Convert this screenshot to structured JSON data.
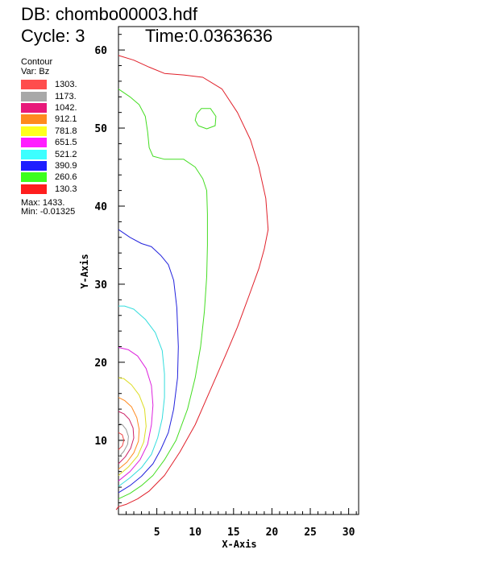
{
  "header": {
    "db_label": "DB: chombo00003.hdf",
    "cycle_label": "Cycle: 3",
    "time_label": "Time:0.0363636"
  },
  "legend": {
    "title": "Contour",
    "var_label": "Var: Bz",
    "levels": [
      {
        "label": "1303.",
        "color": "#ff4d4d"
      },
      {
        "label": "1173.",
        "color": "#a8a8a8"
      },
      {
        "label": "1042.",
        "color": "#e8197a"
      },
      {
        "label": "912.1",
        "color": "#ff8a1e"
      },
      {
        "label": "781.8",
        "color": "#ffff1e"
      },
      {
        "label": "651.5",
        "color": "#ff1eff"
      },
      {
        "label": "521.2",
        "color": "#3cffff"
      },
      {
        "label": "390.9",
        "color": "#1e1eff"
      },
      {
        "label": "260.6",
        "color": "#3cff1e"
      },
      {
        "label": "130.3",
        "color": "#ff1e1e"
      }
    ],
    "max_label": "Max:  1433.",
    "min_label": "Min:  -0.01325"
  },
  "chart_data": {
    "type": "contour",
    "xlabel": "X-Axis",
    "ylabel": "Y-Axis",
    "xlim": [
      0,
      31.3
    ],
    "ylim": [
      0.5,
      63
    ],
    "xticks": [
      5,
      10,
      15,
      20,
      25,
      30
    ],
    "yticks": [
      10,
      20,
      30,
      40,
      50,
      60
    ],
    "series": [
      {
        "level": "130.3",
        "color": "#e0202a",
        "points": [
          [
            0,
            1.5
          ],
          [
            1,
            1.8
          ],
          [
            2.5,
            2.5
          ],
          [
            4,
            3.5
          ],
          [
            6,
            5.5
          ],
          [
            8,
            8.5
          ],
          [
            10,
            12
          ],
          [
            12,
            16.5
          ],
          [
            14,
            21
          ],
          [
            15.5,
            24.5
          ],
          [
            17,
            28.5
          ],
          [
            18.3,
            32
          ],
          [
            19,
            34.5
          ],
          [
            19.5,
            37
          ],
          [
            19.2,
            41
          ],
          [
            18.3,
            45
          ],
          [
            17.2,
            48.5
          ],
          [
            15.5,
            52
          ],
          [
            13.5,
            55
          ],
          [
            11,
            56.5
          ],
          [
            8.5,
            56.8
          ],
          [
            6,
            57
          ],
          [
            4,
            57.8
          ],
          [
            2,
            58.7
          ],
          [
            0,
            59.3
          ]
        ]
      },
      {
        "level": "130.3",
        "color": "#e0202a",
        "points": [
          [
            -0.3,
            1.1
          ],
          [
            0,
            1.5
          ]
        ]
      },
      {
        "level": "260.6",
        "color": "#44dd22",
        "points": [
          [
            0,
            2.5
          ],
          [
            1.5,
            3.2
          ],
          [
            3,
            4.2
          ],
          [
            4.5,
            5.5
          ],
          [
            6,
            7.5
          ],
          [
            7.5,
            10
          ],
          [
            9,
            14
          ],
          [
            10,
            18
          ],
          [
            10.7,
            22
          ],
          [
            11.2,
            26.5
          ],
          [
            11.5,
            31
          ],
          [
            11.6,
            35
          ],
          [
            11.6,
            39
          ],
          [
            11.5,
            42
          ],
          [
            11,
            43.5
          ],
          [
            10,
            45
          ],
          [
            8.5,
            46
          ],
          [
            6,
            46
          ],
          [
            4.5,
            46.4
          ],
          [
            4,
            47.5
          ],
          [
            3.8,
            49.5
          ],
          [
            3.5,
            51.5
          ],
          [
            2.7,
            53
          ],
          [
            1.5,
            54
          ],
          [
            0,
            55
          ]
        ]
      },
      {
        "level": "260.6",
        "color": "#44dd22",
        "points": [
          [
            10.4,
            50.3
          ],
          [
            11.5,
            49.9
          ],
          [
            12.6,
            50.3
          ],
          [
            12.7,
            51.5
          ],
          [
            12,
            52.5
          ],
          [
            10.8,
            52.5
          ],
          [
            10.2,
            51.8
          ],
          [
            10,
            51
          ],
          [
            10.4,
            50.3
          ]
        ]
      },
      {
        "level": "390.9",
        "color": "#2222dd",
        "points": [
          [
            0,
            3.3
          ],
          [
            1.5,
            4.2
          ],
          [
            3,
            5.4
          ],
          [
            4.5,
            7
          ],
          [
            5.5,
            8.8
          ],
          [
            6.5,
            11
          ],
          [
            7.2,
            14
          ],
          [
            7.7,
            18
          ],
          [
            7.8,
            22
          ],
          [
            7.6,
            27
          ],
          [
            7.2,
            30.5
          ],
          [
            6.5,
            32.5
          ],
          [
            5.5,
            33.7
          ],
          [
            4.3,
            34.8
          ],
          [
            3,
            35.2
          ],
          [
            1.5,
            36
          ],
          [
            0,
            37
          ]
        ]
      },
      {
        "level": "521.2",
        "color": "#33dddd",
        "points": [
          [
            0,
            4.1
          ],
          [
            1.5,
            5.2
          ],
          [
            3,
            6.5
          ],
          [
            4.3,
            8.2
          ],
          [
            5.1,
            10.3
          ],
          [
            5.7,
            12.8
          ],
          [
            6,
            15.5
          ],
          [
            6,
            18.5
          ],
          [
            5.7,
            21.5
          ],
          [
            4.8,
            23.8
          ],
          [
            3.5,
            25.5
          ],
          [
            2,
            26.8
          ],
          [
            0.8,
            27.2
          ],
          [
            0,
            27.2
          ]
        ]
      },
      {
        "level": "651.5",
        "color": "#dd22dd",
        "points": [
          [
            0,
            4.8
          ],
          [
            1.5,
            6
          ],
          [
            2.8,
            7.5
          ],
          [
            3.8,
            9.5
          ],
          [
            4.3,
            12
          ],
          [
            4.5,
            14.5
          ],
          [
            4.3,
            17
          ],
          [
            3.6,
            19.2
          ],
          [
            2.5,
            20.8
          ],
          [
            1.3,
            21.6
          ],
          [
            0,
            21.9
          ]
        ]
      },
      {
        "level": "781.8",
        "color": "#dddd22",
        "points": [
          [
            0,
            5.5
          ],
          [
            1.3,
            6.6
          ],
          [
            2.5,
            8
          ],
          [
            3.3,
            9.8
          ],
          [
            3.6,
            11.8
          ],
          [
            3.4,
            14
          ],
          [
            2.7,
            15.8
          ],
          [
            1.7,
            17.1
          ],
          [
            0.7,
            17.9
          ],
          [
            0,
            18
          ]
        ]
      },
      {
        "level": "912.1",
        "color": "#ff8a1e",
        "points": [
          [
            0,
            6.3
          ],
          [
            1.1,
            7.2
          ],
          [
            2,
            8.4
          ],
          [
            2.6,
            9.9
          ],
          [
            2.7,
            11.4
          ],
          [
            2.4,
            12.9
          ],
          [
            1.7,
            14.3
          ],
          [
            0.8,
            15.1
          ],
          [
            0,
            15.5
          ]
        ]
      },
      {
        "level": "1042.",
        "color": "#cc2266",
        "points": [
          [
            0,
            7.0
          ],
          [
            0.9,
            7.9
          ],
          [
            1.6,
            9
          ],
          [
            2,
            10.3
          ],
          [
            1.9,
            11.6
          ],
          [
            1.4,
            12.7
          ],
          [
            0.7,
            13.4
          ],
          [
            0,
            13.7
          ]
        ]
      },
      {
        "level": "1173.",
        "color": "#999999",
        "points": [
          [
            0,
            7.8
          ],
          [
            0.7,
            8.6
          ],
          [
            1.2,
            9.5
          ],
          [
            1.3,
            10.5
          ],
          [
            1,
            11.4
          ],
          [
            0.5,
            12
          ],
          [
            0,
            12.2
          ]
        ]
      },
      {
        "level": "1303.",
        "color": "#ee4444",
        "points": [
          [
            0,
            8.8
          ],
          [
            0.5,
            9.3
          ],
          [
            0.7,
            10
          ],
          [
            0.5,
            10.7
          ],
          [
            0,
            11
          ]
        ]
      }
    ]
  }
}
